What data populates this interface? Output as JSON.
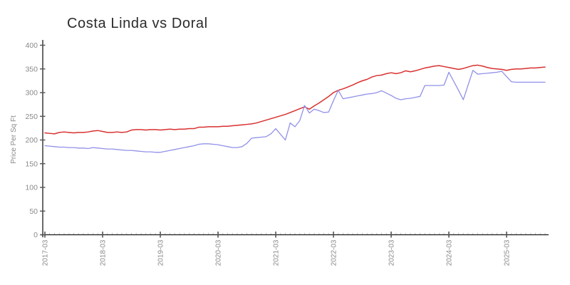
{
  "title": "Costa Linda vs Doral",
  "y_axis": {
    "label": "Price Per Sq Ft",
    "ticks": [
      0,
      50,
      100,
      150,
      200,
      250,
      300,
      350,
      400
    ]
  },
  "x_axis": {
    "tick_labels": [
      "2017-03",
      "2018-03",
      "2019-03",
      "2020-03",
      "2021-03",
      "2022-03",
      "2023-03",
      "2024-03",
      "2025-03"
    ]
  },
  "colors": {
    "costa_linda_line": "#d93030",
    "doral_line": "#9191e8",
    "axis": "#1a1a1a",
    "major_tick": "#555555",
    "minor_tick": "#c4c4c4",
    "tick_label": "#8a8a8a",
    "axis_label": "#8a8a8a",
    "title_text": "#2b2b2b"
  },
  "chart_data": {
    "type": "line",
    "title": "Costa Linda vs Doral",
    "xlabel": "",
    "ylabel": "Price Per Sq Ft",
    "ylim": [
      0,
      400
    ],
    "x_start": "2017-03",
    "x_end": "2025-11",
    "x_interval": "monthly",
    "x_major_tick_labels": [
      "2017-03",
      "2018-03",
      "2019-03",
      "2020-03",
      "2021-03",
      "2022-03",
      "2023-03",
      "2024-03",
      "2025-03"
    ],
    "legend": "none",
    "grid": false,
    "series": [
      {
        "name": "Costa Linda",
        "color": "#d93030",
        "values": [
          215,
          214,
          213,
          216,
          217,
          216,
          215,
          216,
          216,
          217,
          219,
          220,
          218,
          216,
          216,
          217,
          216,
          217,
          221,
          222,
          222,
          221,
          222,
          222,
          221,
          222,
          223,
          222,
          223,
          223,
          224,
          224,
          227,
          227,
          228,
          228,
          228,
          229,
          229,
          230,
          231,
          232,
          233,
          234,
          236,
          239,
          242,
          245,
          248,
          251,
          254,
          258,
          262,
          266,
          270,
          265,
          272,
          278,
          285,
          292,
          300,
          305,
          308,
          312,
          316,
          321,
          325,
          328,
          333,
          336,
          337,
          340,
          342,
          340,
          342,
          346,
          344,
          346,
          349,
          352,
          354,
          356,
          357,
          355,
          353,
          351,
          349,
          351,
          354,
          357,
          358,
          356,
          353,
          351,
          350,
          349,
          347,
          349,
          350,
          350,
          351,
          352,
          352,
          353,
          354
        ]
      },
      {
        "name": "Doral",
        "color": "#9191e8",
        "values": [
          188,
          187,
          186,
          185,
          185,
          184,
          184,
          183,
          183,
          182,
          184,
          183,
          182,
          181,
          181,
          180,
          179,
          178,
          178,
          177,
          176,
          175,
          175,
          174,
          174,
          176,
          178,
          180,
          182,
          184,
          186,
          188,
          191,
          192,
          192,
          191,
          190,
          188,
          186,
          184,
          184,
          186,
          193,
          204,
          205,
          206,
          207,
          213,
          224,
          212,
          200,
          236,
          228,
          241,
          273,
          257,
          265,
          262,
          258,
          259,
          283,
          305,
          287,
          289,
          291,
          293,
          295,
          297,
          298,
          300,
          304,
          299,
          294,
          288,
          285,
          287,
          288,
          290,
          292,
          315,
          315,
          315,
          315,
          316,
          343,
          324,
          305,
          285,
          316,
          347,
          339,
          340,
          341,
          342,
          343,
          345,
          334,
          323,
          322,
          322,
          322,
          322,
          322,
          322,
          322
        ]
      }
    ]
  }
}
